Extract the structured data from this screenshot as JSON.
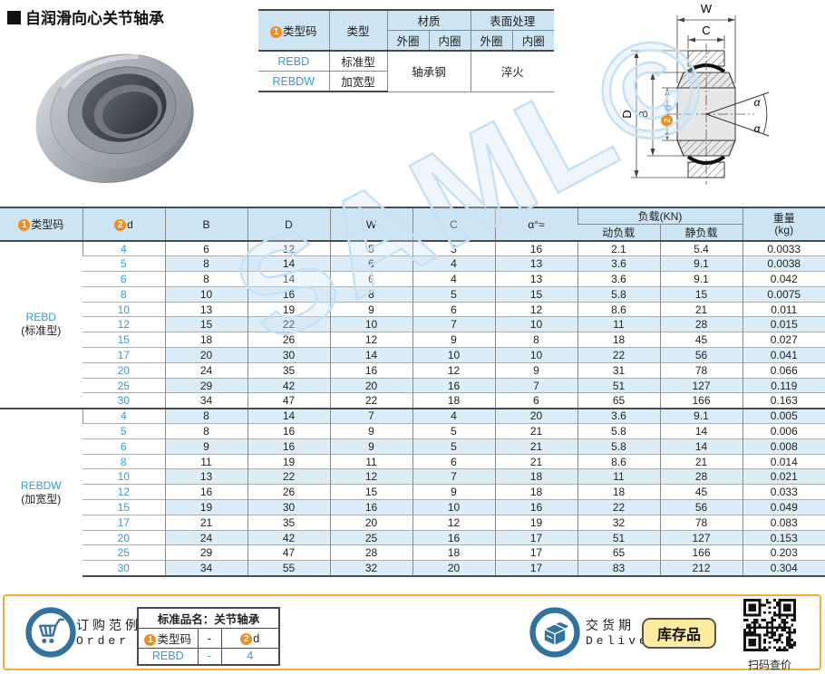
{
  "header": {
    "title": "自润滑向心关节轴承"
  },
  "nums": {
    "one": "1",
    "two": "2"
  },
  "watermark": {
    "text": "SAML©"
  },
  "colors": {
    "accent_blue": "#2b9fd8",
    "circle_orange": "#f28c1e",
    "table_header_bg": "#cde4f2",
    "alt_row_bg": "#ddedf7",
    "footer_border": "#f6ac3a",
    "icon_blue": "#31739e",
    "badge_bg": "#fdec9f"
  },
  "spec_table": {
    "col_code": "类型码",
    "col_type": "类型",
    "col_material": "材质",
    "col_surface": "表面处理",
    "outer": "外圈",
    "inner": "内圈",
    "rows": [
      {
        "code": "REBD",
        "type": "标准型"
      },
      {
        "code": "REBDW",
        "type": "加宽型"
      }
    ],
    "material_value": "轴承钢",
    "surface_value": "淬火"
  },
  "drawing": {
    "labels": {
      "w": "W",
      "c": "C",
      "d_outer": "D",
      "b": "B",
      "d": "d",
      "alpha": "α"
    }
  },
  "main_table": {
    "headers": {
      "type_code": "类型码",
      "d": "d",
      "b": "B",
      "dd": "D",
      "w": "W",
      "c": "C",
      "alpha": "α°≈",
      "load": "负载(KN)",
      "dyn": "动负载",
      "stat": "静负载",
      "weight": "重量",
      "weight_unit": "(kg)"
    },
    "groups": [
      {
        "code": "REBD",
        "type": "(标准型)",
        "rows": [
          [
            "4",
            "6",
            "12",
            "5",
            "3",
            "16",
            "2.1",
            "5.4",
            "0.0033"
          ],
          [
            "5",
            "8",
            "14",
            "6",
            "4",
            "13",
            "3.6",
            "9.1",
            "0.0038"
          ],
          [
            "6",
            "8",
            "14",
            "6",
            "4",
            "13",
            "3.6",
            "9.1",
            "0.042"
          ],
          [
            "8",
            "10",
            "16",
            "8",
            "5",
            "15",
            "5.8",
            "15",
            "0.0075"
          ],
          [
            "10",
            "13",
            "19",
            "9",
            "6",
            "12",
            "8.6",
            "21",
            "0.011"
          ],
          [
            "12",
            "15",
            "22",
            "10",
            "7",
            "10",
            "11",
            "28",
            "0.015"
          ],
          [
            "15",
            "18",
            "26",
            "12",
            "9",
            "8",
            "18",
            "45",
            "0.027"
          ],
          [
            "17",
            "20",
            "30",
            "14",
            "10",
            "10",
            "22",
            "56",
            "0.041"
          ],
          [
            "20",
            "24",
            "35",
            "16",
            "12",
            "9",
            "31",
            "78",
            "0.066"
          ],
          [
            "25",
            "29",
            "42",
            "20",
            "16",
            "7",
            "51",
            "127",
            "0.119"
          ],
          [
            "30",
            "34",
            "47",
            "22",
            "18",
            "6",
            "65",
            "166",
            "0.163"
          ]
        ]
      },
      {
        "code": "REBDW",
        "type": "(加宽型)",
        "rows": [
          [
            "4",
            "8",
            "14",
            "7",
            "4",
            "20",
            "3.6",
            "9.1",
            "0.005"
          ],
          [
            "5",
            "8",
            "16",
            "9",
            "5",
            "21",
            "5.8",
            "14",
            "0.006"
          ],
          [
            "6",
            "9",
            "16",
            "9",
            "5",
            "21",
            "5.8",
            "14",
            "0.008"
          ],
          [
            "8",
            "11",
            "19",
            "11",
            "6",
            "21",
            "8.6",
            "21",
            "0.014"
          ],
          [
            "10",
            "13",
            "22",
            "12",
            "7",
            "18",
            "11",
            "28",
            "0.021"
          ],
          [
            "12",
            "16",
            "26",
            "15",
            "9",
            "18",
            "18",
            "45",
            "0.033"
          ],
          [
            "15",
            "19",
            "30",
            "16",
            "10",
            "16",
            "22",
            "56",
            "0.049"
          ],
          [
            "17",
            "21",
            "35",
            "20",
            "12",
            "19",
            "32",
            "78",
            "0.083"
          ],
          [
            "20",
            "24",
            "42",
            "25",
            "16",
            "17",
            "51",
            "127",
            "0.153"
          ],
          [
            "25",
            "29",
            "47",
            "28",
            "18",
            "17",
            "65",
            "166",
            "0.203"
          ],
          [
            "30",
            "34",
            "55",
            "32",
            "20",
            "17",
            "83",
            "212",
            "0.304"
          ]
        ]
      }
    ]
  },
  "footer": {
    "order": {
      "label_cn": "订购范例",
      "label_en": "Order"
    },
    "order_table": {
      "title": "标准品名：关节轴承",
      "col_type": "类型码",
      "col_dash": "-",
      "col_d": "d",
      "val_type": "REBD",
      "val_dash": "-",
      "val_d": "4"
    },
    "delivery": {
      "label_cn": "交货期",
      "label_en": "Delivery"
    },
    "stock_badge": "库存品",
    "qr_caption": "扫码查价"
  }
}
